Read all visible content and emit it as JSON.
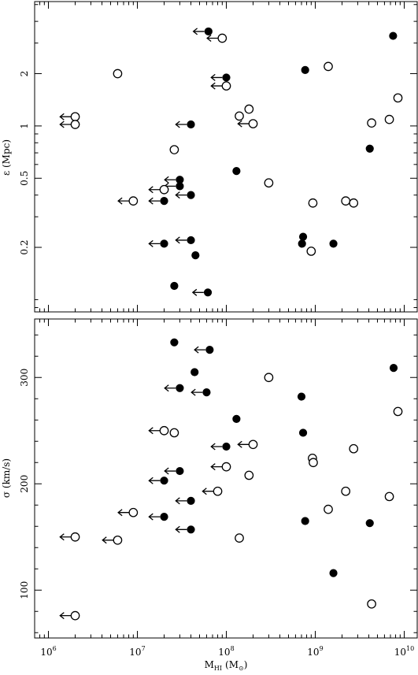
{
  "chart_data": [
    {
      "type": "scatter",
      "title": "",
      "ylabel": "ε (Mpc)",
      "xlabel": "",
      "xscale": "log",
      "yscale": "log",
      "xlim": [
        700000.0,
        14000000000.0
      ],
      "ylim": [
        0.085,
        5.2
      ],
      "y_tick_labels": [
        "0.2",
        "0.5",
        "1",
        "2"
      ],
      "y_tick_values": [
        0.2,
        0.5,
        1,
        2
      ],
      "series": [
        {
          "marker": "filled",
          "points": [
            {
              "x": 63000000.0,
              "y": 3.5,
              "upper_limit": true
            },
            {
              "x": 100000000.0,
              "y": 1.9,
              "upper_limit": true
            },
            {
              "x": 40000000.0,
              "y": 1.02,
              "upper_limit": true
            },
            {
              "x": 30000000.0,
              "y": 0.49,
              "upper_limit": true
            },
            {
              "x": 30000000.0,
              "y": 0.45,
              "upper_limit": true
            },
            {
              "x": 40000000.0,
              "y": 0.4,
              "upper_limit": true
            },
            {
              "x": 20000000.0,
              "y": 0.37,
              "upper_limit": true
            },
            {
              "x": 40000000.0,
              "y": 0.22,
              "upper_limit": true
            },
            {
              "x": 20000000.0,
              "y": 0.21,
              "upper_limit": true
            },
            {
              "x": 62000000.0,
              "y": 0.11,
              "upper_limit": true
            },
            {
              "x": 45000000.0,
              "y": 0.18,
              "upper_limit": false
            },
            {
              "x": 26000000.0,
              "y": 0.12,
              "upper_limit": false
            },
            {
              "x": 130000000.0,
              "y": 0.55,
              "upper_limit": false
            },
            {
              "x": 770000000.0,
              "y": 2.1,
              "upper_limit": false
            },
            {
              "x": 7500000000.0,
              "y": 3.3,
              "upper_limit": false
            },
            {
              "x": 4100000000.0,
              "y": 0.74,
              "upper_limit": false
            },
            {
              "x": 730000000.0,
              "y": 0.23,
              "upper_limit": false
            },
            {
              "x": 710000000.0,
              "y": 0.21,
              "upper_limit": false
            },
            {
              "x": 1600000000.0,
              "y": 0.21,
              "upper_limit": false
            }
          ]
        },
        {
          "marker": "open",
          "points": [
            {
              "x": 90000000.0,
              "y": 3.2,
              "upper_limit": true
            },
            {
              "x": 100000000.0,
              "y": 1.7,
              "upper_limit": true
            },
            {
              "x": 2000000.0,
              "y": 1.13,
              "upper_limit": true
            },
            {
              "x": 2000000.0,
              "y": 1.02,
              "upper_limit": true
            },
            {
              "x": 200000000.0,
              "y": 1.03,
              "upper_limit": true
            },
            {
              "x": 20000000.0,
              "y": 0.43,
              "upper_limit": true
            },
            {
              "x": 9000000.0,
              "y": 0.37,
              "upper_limit": true
            },
            {
              "x": 6000000.0,
              "y": 2.0,
              "upper_limit": false
            },
            {
              "x": 1400000000.0,
              "y": 2.2,
              "upper_limit": false
            },
            {
              "x": 8500000000.0,
              "y": 1.45,
              "upper_limit": false
            },
            {
              "x": 180000000.0,
              "y": 1.25,
              "upper_limit": false
            },
            {
              "x": 140000000.0,
              "y": 1.14,
              "upper_limit": false
            },
            {
              "x": 4300000000.0,
              "y": 1.04,
              "upper_limit": false
            },
            {
              "x": 6800000000.0,
              "y": 1.09,
              "upper_limit": false
            },
            {
              "x": 26000000.0,
              "y": 0.73,
              "upper_limit": false
            },
            {
              "x": 300000000.0,
              "y": 0.47,
              "upper_limit": false
            },
            {
              "x": 940000000.0,
              "y": 0.36,
              "upper_limit": false
            },
            {
              "x": 2200000000.0,
              "y": 0.37,
              "upper_limit": false
            },
            {
              "x": 2700000000.0,
              "y": 0.36,
              "upper_limit": false
            },
            {
              "x": 900000000.0,
              "y": 0.19,
              "upper_limit": false
            }
          ]
        }
      ]
    },
    {
      "type": "scatter",
      "title": "",
      "ylabel": "σ (km/s)",
      "xlabel": "M",
      "xlabel_sub": "HI",
      "xlabel_unit": "(M",
      "xlabel_unit_sub": "⊙",
      "xlabel_unit_close": ")",
      "xscale": "log",
      "yscale": "linear",
      "xlim": [
        700000.0,
        14000000000.0
      ],
      "ylim": [
        55,
        355
      ],
      "x_tick_values": [
        1000000.0,
        10000000.0,
        100000000.0,
        1000000000.0,
        10000000000.0
      ],
      "x_tick_mantissa": "10",
      "x_tick_exponents": [
        "6",
        "7",
        "8",
        "9",
        "10"
      ],
      "y_tick_labels": [
        "100",
        "200",
        "300"
      ],
      "y_tick_values": [
        100,
        200,
        300
      ],
      "series": [
        {
          "marker": "filled",
          "points": [
            {
              "x": 65000000.0,
              "y": 326,
              "upper_limit": true
            },
            {
              "x": 30000000.0,
              "y": 290,
              "upper_limit": true
            },
            {
              "x": 60000000.0,
              "y": 286,
              "upper_limit": true
            },
            {
              "x": 100000000.0,
              "y": 235,
              "upper_limit": true
            },
            {
              "x": 30000000.0,
              "y": 212,
              "upper_limit": true
            },
            {
              "x": 20000000.0,
              "y": 203,
              "upper_limit": true
            },
            {
              "x": 40000000.0,
              "y": 184,
              "upper_limit": true
            },
            {
              "x": 20000000.0,
              "y": 169,
              "upper_limit": true
            },
            {
              "x": 40000000.0,
              "y": 157,
              "upper_limit": true
            },
            {
              "x": 26000000.0,
              "y": 333,
              "upper_limit": false
            },
            {
              "x": 44000000.0,
              "y": 305,
              "upper_limit": false
            },
            {
              "x": 130000000.0,
              "y": 261,
              "upper_limit": false
            },
            {
              "x": 700000000.0,
              "y": 282,
              "upper_limit": false
            },
            {
              "x": 730000000.0,
              "y": 248,
              "upper_limit": false
            },
            {
              "x": 7600000000.0,
              "y": 309,
              "upper_limit": false
            },
            {
              "x": 770000000.0,
              "y": 165,
              "upper_limit": false
            },
            {
              "x": 4100000000.0,
              "y": 163,
              "upper_limit": false
            },
            {
              "x": 1600000000.0,
              "y": 116,
              "upper_limit": false
            }
          ]
        },
        {
          "marker": "open",
          "points": [
            {
              "x": 20000000.0,
              "y": 250,
              "upper_limit": true
            },
            {
              "x": 200000000.0,
              "y": 237,
              "upper_limit": true
            },
            {
              "x": 100000000.0,
              "y": 216,
              "upper_limit": true
            },
            {
              "x": 80000000.0,
              "y": 193,
              "upper_limit": true
            },
            {
              "x": 9000000.0,
              "y": 173,
              "upper_limit": true
            },
            {
              "x": 2000000.0,
              "y": 150,
              "upper_limit": true
            },
            {
              "x": 6000000.0,
              "y": 147,
              "upper_limit": true
            },
            {
              "x": 2000000.0,
              "y": 76,
              "upper_limit": true
            },
            {
              "x": 26000000.0,
              "y": 248,
              "upper_limit": false
            },
            {
              "x": 300000000.0,
              "y": 300,
              "upper_limit": false
            },
            {
              "x": 180000000.0,
              "y": 208,
              "upper_limit": false
            },
            {
              "x": 930000000.0,
              "y": 224,
              "upper_limit": false
            },
            {
              "x": 950000000.0,
              "y": 220,
              "upper_limit": false
            },
            {
              "x": 2700000000.0,
              "y": 233,
              "upper_limit": false
            },
            {
              "x": 2200000000.0,
              "y": 193,
              "upper_limit": false
            },
            {
              "x": 6800000000.0,
              "y": 188,
              "upper_limit": false
            },
            {
              "x": 8500000000.0,
              "y": 268,
              "upper_limit": false
            },
            {
              "x": 1400000000.0,
              "y": 176,
              "upper_limit": false
            },
            {
              "x": 140000000.0,
              "y": 149,
              "upper_limit": false
            },
            {
              "x": 4300000000.0,
              "y": 87,
              "upper_limit": false
            }
          ]
        }
      ]
    }
  ]
}
